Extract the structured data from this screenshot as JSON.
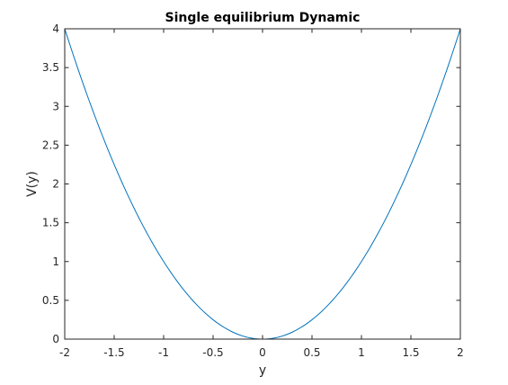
{
  "chart_data": {
    "type": "line",
    "title": "Single equilibrium Dynamic",
    "xlabel": "y",
    "ylabel": "V(y)",
    "xlim": [
      -2,
      2
    ],
    "ylim": [
      0,
      4
    ],
    "xticks": [
      -2,
      -1.5,
      -1,
      -0.5,
      0,
      0.5,
      1,
      1.5,
      2
    ],
    "xtick_labels": [
      "-2",
      "-1.5",
      "-1",
      "-0.5",
      "0",
      "0.5",
      "1",
      "1.5",
      "2"
    ],
    "yticks": [
      0,
      0.5,
      1,
      1.5,
      2,
      2.5,
      3,
      3.5,
      4
    ],
    "ytick_labels": [
      "0",
      "0.5",
      "1",
      "1.5",
      "2",
      "2.5",
      "3",
      "3.5",
      "4"
    ],
    "grid": false,
    "box": true,
    "line_color": "#0072bd",
    "series": [
      {
        "x": [
          -2,
          -1.75,
          -1.5,
          -1.25,
          -1,
          -0.75,
          -0.5,
          -0.25,
          0,
          0.25,
          0.5,
          0.75,
          1,
          1.25,
          1.5,
          1.75,
          2
        ],
        "y": [
          4,
          3.0625,
          2.25,
          1.5625,
          1,
          0.5625,
          0.25,
          0.0625,
          0,
          0.0625,
          0.25,
          0.5625,
          1,
          1.5625,
          2.25,
          3.0625,
          4
        ]
      }
    ]
  }
}
